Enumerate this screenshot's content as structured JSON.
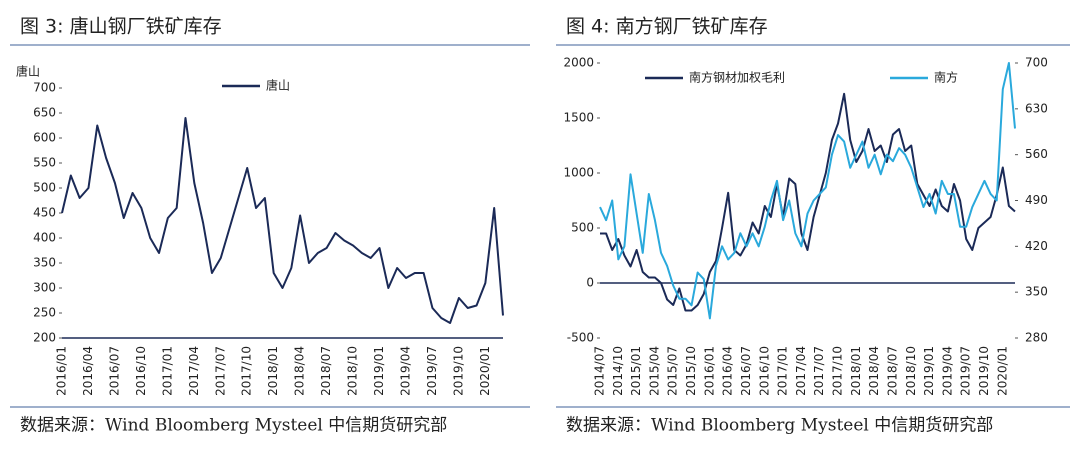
{
  "chart_data": [
    {
      "type": "line",
      "title": "图 3:   唐山钢厂铁矿库存",
      "ylabel": "唐山",
      "source": "数据来源：Wind Bloomberg Mysteel 中信期货研究部",
      "categories": [
        "2016/01",
        null,
        null,
        "2016/04",
        null,
        null,
        "2016/07",
        null,
        null,
        "2016/10",
        null,
        null,
        "2017/01",
        null,
        null,
        "2017/04",
        null,
        null,
        "2017/07",
        null,
        null,
        "2017/10",
        null,
        null,
        "2018/01",
        null,
        null,
        "2018/04",
        null,
        null,
        "2018/07",
        null,
        null,
        "2018/10",
        null,
        null,
        "2019/01",
        null,
        null,
        "2019/04",
        null,
        null,
        "2019/07",
        null,
        null,
        "2019/10",
        null,
        null,
        "2020/01",
        null,
        null
      ],
      "series": [
        {
          "name": "唐山",
          "color": "#1b2a57",
          "values": [
            450,
            525,
            480,
            500,
            625,
            560,
            510,
            440,
            490,
            460,
            400,
            370,
            440,
            460,
            640,
            510,
            430,
            330,
            360,
            420,
            480,
            540,
            460,
            480,
            330,
            300,
            340,
            445,
            350,
            370,
            380,
            410,
            395,
            385,
            370,
            360,
            380,
            300,
            340,
            320,
            330,
            330,
            260,
            240,
            230,
            280,
            260,
            265,
            310,
            460,
            245
          ]
        }
      ],
      "ylim": [
        200,
        700
      ],
      "yticks": [
        200,
        250,
        300,
        350,
        400,
        450,
        500,
        550,
        600,
        650,
        700
      ]
    },
    {
      "type": "line",
      "title": "图 4:   南方钢厂铁矿库存",
      "source": "数据来源：Wind Bloomberg Mysteel 中信期货研究部",
      "categories": [
        "2014/07",
        null,
        null,
        "2014/10",
        null,
        null,
        "2015/01",
        null,
        null,
        "2015/04",
        null,
        null,
        "2015/07",
        null,
        null,
        "2015/10",
        null,
        null,
        "2016/01",
        null,
        null,
        "2016/04",
        null,
        null,
        "2016/07",
        null,
        null,
        "2016/10",
        null,
        null,
        "2017/01",
        null,
        null,
        "2017/04",
        null,
        null,
        "2017/07",
        null,
        null,
        "2017/10",
        null,
        null,
        "2018/01",
        null,
        null,
        "2018/04",
        null,
        null,
        "2018/07",
        null,
        null,
        "2018/10",
        null,
        null,
        "2019/01",
        null,
        null,
        "2019/04",
        null,
        null,
        "2019/07",
        null,
        null,
        "2019/10",
        null,
        null,
        "2020/01",
        null,
        null
      ],
      "series": [
        {
          "name": "南方钢材加权毛利",
          "color": "#1b2a57",
          "values": [
            450,
            450,
            300,
            400,
            250,
            150,
            300,
            100,
            50,
            50,
            0,
            -150,
            -200,
            -50,
            -250,
            -250,
            -200,
            -100,
            100,
            200,
            500,
            820,
            300,
            250,
            350,
            550,
            450,
            700,
            600,
            900,
            600,
            950,
            900,
            450,
            300,
            600,
            800,
            1000,
            1300,
            1450,
            1720,
            1300,
            1100,
            1200,
            1400,
            1200,
            1250,
            1100,
            1350,
            1400,
            1200,
            1250,
            900,
            800,
            700,
            850,
            700,
            650,
            900,
            750,
            400,
            300,
            500,
            550,
            600,
            800,
            1050,
            700,
            650
          ]
        },
        {
          "name": "南方",
          "color": "#2aa9dc",
          "axis": "y2",
          "values": [
            480,
            460,
            490,
            400,
            420,
            530,
            470,
            410,
            500,
            460,
            410,
            390,
            360,
            340,
            340,
            330,
            380,
            370,
            310,
            390,
            420,
            400,
            410,
            440,
            420,
            440,
            420,
            450,
            490,
            520,
            460,
            490,
            440,
            420,
            470,
            490,
            500,
            510,
            560,
            590,
            580,
            540,
            560,
            580,
            540,
            560,
            530,
            560,
            550,
            570,
            560,
            540,
            510,
            480,
            500,
            470,
            520,
            500,
            500,
            450,
            450,
            480,
            500,
            520,
            500,
            490,
            660,
            700,
            600
          ]
        }
      ],
      "ylim": [
        -500,
        2000
      ],
      "yticks": [
        -500,
        0,
        500,
        1000,
        1500,
        2000
      ],
      "y2lim": [
        280,
        700
      ],
      "y2ticks": [
        280,
        350,
        420,
        490,
        560,
        630,
        700
      ]
    }
  ]
}
